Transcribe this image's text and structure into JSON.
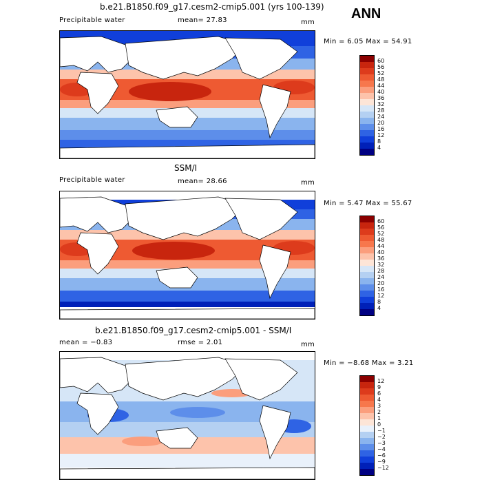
{
  "season": "ANN",
  "panels": [
    {
      "title": "b.e21.B1850.f09_g17.cesm2-cmip5.001 (yrs 100-139)",
      "left_label": "Precipitable water",
      "center_label": "mean=  27.83",
      "right_label": "mm",
      "minmax": "Min =    6.05 Max =  54.91",
      "colorbar_labels": [
        "60",
        "56",
        "52",
        "48",
        "44",
        "40",
        "36",
        "32",
        "28",
        "24",
        "20",
        "16",
        "12",
        "8",
        "4"
      ],
      "colorbar_colors": [
        "#8b0000",
        "#c8250e",
        "#dd3b1c",
        "#ee5a32",
        "#f7774c",
        "#fb9e7d",
        "#fdc3ab",
        "#fde5d7",
        "#d6e6f7",
        "#b4d0f2",
        "#8ab4ee",
        "#5d8eea",
        "#2f63e4",
        "#103fda",
        "#0020b8",
        "#000082"
      ]
    },
    {
      "title": "SSM/I",
      "left_label": "Precipitable water",
      "center_label": "mean=  28.66",
      "right_label": "mm",
      "minmax": "Min =    5.47 Max =  55.67",
      "colorbar_labels": [
        "60",
        "56",
        "52",
        "48",
        "44",
        "40",
        "36",
        "32",
        "28",
        "24",
        "20",
        "16",
        "12",
        "8",
        "4"
      ],
      "colorbar_colors": [
        "#8b0000",
        "#c8250e",
        "#dd3b1c",
        "#ee5a32",
        "#f7774c",
        "#fb9e7d",
        "#fdc3ab",
        "#fde5d7",
        "#d6e6f7",
        "#b4d0f2",
        "#8ab4ee",
        "#5d8eea",
        "#2f63e4",
        "#103fda",
        "#0020b8",
        "#000082"
      ]
    },
    {
      "title": "b.e21.B1850.f09_g17.cesm2-cmip5.001 - SSM/I",
      "left_label": "mean =  −0.83",
      "center_label": "rmse =   2.01",
      "right_label": "mm",
      "minmax": "Min =  −8.68 Max =   3.21",
      "colorbar_labels": [
        "12",
        "9",
        "6",
        "4",
        "3",
        "2",
        "1",
        "0",
        "−1",
        "−2",
        "−3",
        "−4",
        "−6",
        "−9",
        "−12"
      ],
      "colorbar_colors": [
        "#8b0000",
        "#c8250e",
        "#dd3b1c",
        "#ee5a32",
        "#f7774c",
        "#fb9e7d",
        "#fdc3ab",
        "#fde5d7",
        "#e9f1fb",
        "#b4d0f2",
        "#8ab4ee",
        "#5d8eea",
        "#2f63e4",
        "#103fda",
        "#0020b8",
        "#000082"
      ]
    }
  ]
}
